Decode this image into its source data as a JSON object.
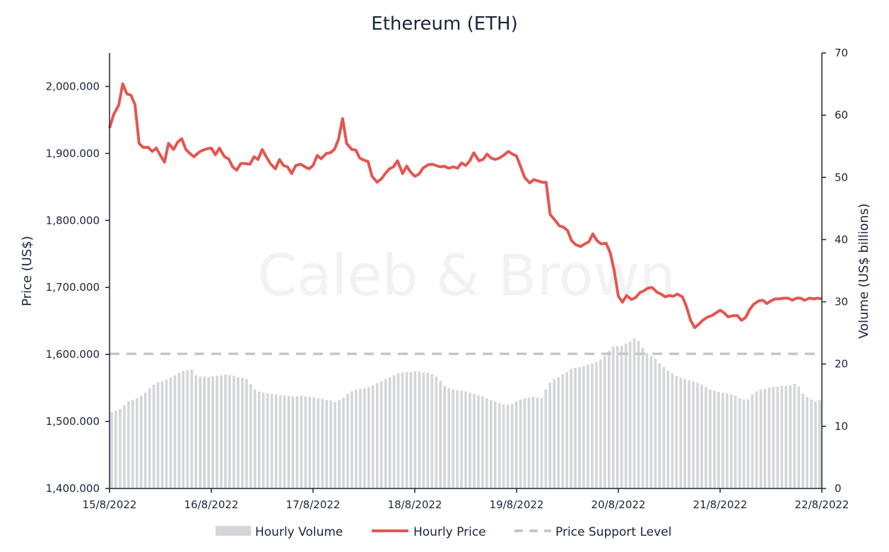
{
  "chart_data": {
    "type": "bar+line",
    "title": "Ethereum (ETH)",
    "watermark": "Caleb & Brown",
    "ylabel": "Price (US$)",
    "y2label": "Volume (US$ billions)",
    "ylim": [
      1400,
      2050
    ],
    "y2lim": [
      0,
      70
    ],
    "yticks": [
      "1,400.000",
      "1,500.000",
      "1,600.000",
      "1,700.000",
      "1,800.000",
      "1,900.000",
      "2,000.000"
    ],
    "y2ticks": [
      "0",
      "10",
      "20",
      "30",
      "40",
      "50",
      "60",
      "70"
    ],
    "xticks": [
      "15/8/2022",
      "16/8/2022",
      "17/8/2022",
      "18/8/2022",
      "19/8/2022",
      "20/8/2022",
      "21/8/2022",
      "22/8/2022"
    ],
    "x_unit": "days since 15/8/2022 00:00",
    "support_level": 1601,
    "colors": {
      "price": "#e5554f",
      "volume": "#d3d5d9",
      "support": "#c5c7cb",
      "axis": "#1b2437"
    },
    "legend": {
      "volume": "Hourly Volume",
      "price": "Hourly Price",
      "support": "Price Support Level"
    },
    "price_series": {
      "name": "Hourly Price",
      "points": [
        [
          0.0,
          1938
        ],
        [
          0.04,
          1958
        ],
        [
          0.09,
          1972
        ],
        [
          0.13,
          2004
        ],
        [
          0.17,
          1989
        ],
        [
          0.21,
          1987
        ],
        [
          0.25,
          1973
        ],
        [
          0.29,
          1915
        ],
        [
          0.33,
          1909
        ],
        [
          0.38,
          1909
        ],
        [
          0.42,
          1903
        ],
        [
          0.46,
          1908
        ],
        [
          0.5,
          1897
        ],
        [
          0.54,
          1887
        ],
        [
          0.58,
          1915
        ],
        [
          0.63,
          1906
        ],
        [
          0.67,
          1917
        ],
        [
          0.71,
          1922
        ],
        [
          0.75,
          1906
        ],
        [
          0.79,
          1900
        ],
        [
          0.83,
          1895
        ],
        [
          0.88,
          1902
        ],
        [
          0.92,
          1905
        ],
        [
          0.96,
          1907
        ],
        [
          1.0,
          1908
        ],
        [
          1.04,
          1898
        ],
        [
          1.08,
          1908
        ],
        [
          1.13,
          1895
        ],
        [
          1.17,
          1892
        ],
        [
          1.21,
          1880
        ],
        [
          1.25,
          1875
        ],
        [
          1.29,
          1885
        ],
        [
          1.33,
          1885
        ],
        [
          1.38,
          1884
        ],
        [
          1.42,
          1895
        ],
        [
          1.46,
          1891
        ],
        [
          1.5,
          1906
        ],
        [
          1.54,
          1895
        ],
        [
          1.58,
          1885
        ],
        [
          1.63,
          1877
        ],
        [
          1.67,
          1891
        ],
        [
          1.71,
          1882
        ],
        [
          1.75,
          1880
        ],
        [
          1.79,
          1870
        ],
        [
          1.83,
          1882
        ],
        [
          1.88,
          1884
        ],
        [
          1.92,
          1880
        ],
        [
          1.96,
          1877
        ],
        [
          2.0,
          1882
        ],
        [
          2.04,
          1897
        ],
        [
          2.08,
          1892
        ],
        [
          2.13,
          1900
        ],
        [
          2.17,
          1901
        ],
        [
          2.21,
          1906
        ],
        [
          2.25,
          1921
        ],
        [
          2.29,
          1952
        ],
        [
          2.33,
          1915
        ],
        [
          2.38,
          1906
        ],
        [
          2.42,
          1905
        ],
        [
          2.46,
          1893
        ],
        [
          2.5,
          1890
        ],
        [
          2.54,
          1888
        ],
        [
          2.58,
          1866
        ],
        [
          2.63,
          1857
        ],
        [
          2.67,
          1862
        ],
        [
          2.71,
          1870
        ],
        [
          2.75,
          1877
        ],
        [
          2.79,
          1880
        ],
        [
          2.83,
          1889
        ],
        [
          2.88,
          1870
        ],
        [
          2.92,
          1881
        ],
        [
          2.96,
          1872
        ],
        [
          3.0,
          1866
        ],
        [
          3.04,
          1869
        ],
        [
          3.08,
          1878
        ],
        [
          3.13,
          1883
        ],
        [
          3.17,
          1884
        ],
        [
          3.21,
          1882
        ],
        [
          3.25,
          1880
        ],
        [
          3.29,
          1881
        ],
        [
          3.33,
          1878
        ],
        [
          3.38,
          1880
        ],
        [
          3.42,
          1878
        ],
        [
          3.46,
          1886
        ],
        [
          3.5,
          1882
        ],
        [
          3.54,
          1889
        ],
        [
          3.58,
          1901
        ],
        [
          3.63,
          1889
        ],
        [
          3.67,
          1891
        ],
        [
          3.71,
          1899
        ],
        [
          3.75,
          1893
        ],
        [
          3.79,
          1891
        ],
        [
          3.83,
          1893
        ],
        [
          3.88,
          1898
        ],
        [
          3.92,
          1903
        ],
        [
          3.96,
          1899
        ],
        [
          4.0,
          1896
        ],
        [
          4.04,
          1880
        ],
        [
          4.08,
          1864
        ],
        [
          4.13,
          1856
        ],
        [
          4.17,
          1861
        ],
        [
          4.21,
          1859
        ],
        [
          4.25,
          1857
        ],
        [
          4.29,
          1857
        ],
        [
          4.33,
          1809
        ],
        [
          4.38,
          1800
        ],
        [
          4.42,
          1792
        ],
        [
          4.46,
          1790
        ],
        [
          4.5,
          1785
        ],
        [
          4.54,
          1770
        ],
        [
          4.58,
          1764
        ],
        [
          4.63,
          1761
        ],
        [
          4.67,
          1765
        ],
        [
          4.71,
          1768
        ],
        [
          4.75,
          1780
        ],
        [
          4.79,
          1770
        ],
        [
          4.83,
          1765
        ],
        [
          4.88,
          1766
        ],
        [
          4.92,
          1752
        ],
        [
          4.96,
          1725
        ],
        [
          5.0,
          1687
        ],
        [
          5.04,
          1678
        ],
        [
          5.08,
          1688
        ],
        [
          5.13,
          1682
        ],
        [
          5.17,
          1685
        ],
        [
          5.21,
          1692
        ],
        [
          5.25,
          1695
        ],
        [
          5.29,
          1699
        ],
        [
          5.33,
          1700
        ],
        [
          5.38,
          1693
        ],
        [
          5.42,
          1690
        ],
        [
          5.46,
          1686
        ],
        [
          5.5,
          1688
        ],
        [
          5.54,
          1687
        ],
        [
          5.58,
          1690
        ],
        [
          5.63,
          1686
        ],
        [
          5.67,
          1671
        ],
        [
          5.71,
          1651
        ],
        [
          5.75,
          1640
        ],
        [
          5.79,
          1645
        ],
        [
          5.83,
          1651
        ],
        [
          5.88,
          1656
        ],
        [
          5.92,
          1658
        ],
        [
          5.96,
          1662
        ],
        [
          6.0,
          1666
        ],
        [
          6.04,
          1662
        ],
        [
          6.08,
          1656
        ],
        [
          6.13,
          1658
        ],
        [
          6.17,
          1658
        ],
        [
          6.21,
          1651
        ],
        [
          6.25,
          1655
        ],
        [
          6.29,
          1667
        ],
        [
          6.33,
          1675
        ],
        [
          6.38,
          1680
        ],
        [
          6.42,
          1681
        ],
        [
          6.46,
          1676
        ],
        [
          6.5,
          1680
        ],
        [
          6.54,
          1683
        ],
        [
          6.58,
          1683
        ],
        [
          6.63,
          1684
        ],
        [
          6.67,
          1684
        ],
        [
          6.71,
          1681
        ],
        [
          6.75,
          1684
        ],
        [
          6.79,
          1684
        ],
        [
          6.83,
          1681
        ],
        [
          6.88,
          1684
        ],
        [
          6.92,
          1683
        ],
        [
          6.96,
          1684
        ],
        [
          7.0,
          1683
        ]
      ]
    },
    "volume_series": {
      "name": "Hourly Volume",
      "values": [
        12.3,
        12.5,
        12.8,
        13.4,
        14.0,
        14.2,
        14.5,
        14.9,
        15.4,
        16.1,
        16.7,
        17.1,
        17.3,
        17.5,
        17.8,
        18.2,
        18.6,
        18.9,
        19.0,
        19.1,
        18.2,
        18.0,
        18.0,
        17.9,
        18.0,
        18.1,
        18.2,
        18.3,
        18.2,
        18.1,
        17.9,
        17.8,
        17.6,
        16.8,
        15.9,
        15.6,
        15.4,
        15.3,
        15.2,
        15.1,
        15.0,
        14.9,
        14.9,
        14.8,
        14.8,
        14.9,
        14.8,
        14.7,
        14.6,
        14.5,
        14.4,
        14.2,
        14.1,
        13.9,
        14.2,
        14.6,
        15.2,
        15.6,
        15.9,
        16.0,
        16.1,
        16.3,
        16.6,
        16.9,
        17.2,
        17.6,
        17.9,
        18.2,
        18.5,
        18.6,
        18.7,
        18.7,
        18.8,
        18.8,
        18.7,
        18.6,
        18.4,
        18.0,
        17.3,
        16.5,
        16.1,
        15.9,
        15.8,
        15.7,
        15.6,
        15.4,
        15.2,
        15.0,
        14.8,
        14.5,
        14.2,
        14.0,
        13.7,
        13.5,
        13.5,
        13.6,
        14.0,
        14.3,
        14.5,
        14.6,
        14.7,
        14.6,
        14.5,
        15.9,
        17.0,
        17.6,
        17.9,
        18.3,
        18.7,
        19.2,
        19.4,
        19.5,
        19.7,
        19.9,
        20.1,
        20.3,
        20.7,
        21.3,
        22.1,
        22.8,
        22.9,
        22.9,
        23.3,
        23.6,
        24.1,
        23.7,
        22.6,
        21.8,
        21.3,
        20.9,
        20.1,
        19.5,
        18.9,
        18.5,
        18.1,
        17.8,
        17.6,
        17.4,
        17.2,
        17.0,
        16.7,
        16.3,
        15.9,
        15.7,
        15.5,
        15.4,
        15.3,
        15.1,
        14.9,
        14.5,
        14.3,
        14.3,
        15.1,
        15.6,
        15.9,
        16.0,
        16.2,
        16.3,
        16.4,
        16.5,
        16.5,
        16.6,
        16.8,
        16.4,
        15.2,
        14.7,
        14.3,
        14.0,
        14.2
      ]
    }
  }
}
